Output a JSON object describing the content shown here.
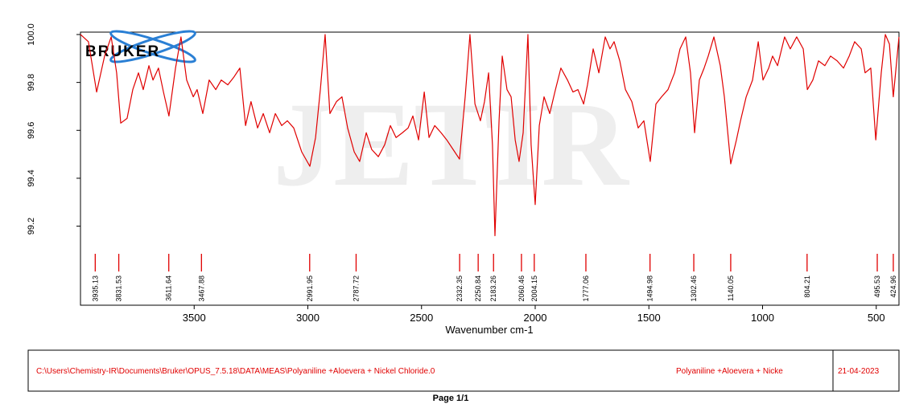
{
  "chart_data": {
    "type": "line",
    "logo": "BRUKER",
    "watermark": "JETIR",
    "xlabel": "Wavenumber cm-1",
    "color": "#e00000",
    "xlim": [
      4000,
      400
    ],
    "ylim": [
      98.87,
      100.01
    ],
    "xticks": [
      3500,
      3000,
      2500,
      2000,
      1500,
      1000,
      500
    ],
    "yticks": [
      {
        "value": 100,
        "label": "100.0"
      },
      99.8,
      99.6,
      99.4,
      99.2
    ],
    "x": [
      4000,
      3965,
      3929,
      3894,
      3865,
      3841,
      3823,
      3795,
      3770,
      3745,
      3724,
      3699,
      3681,
      3657,
      3635,
      3611,
      3582,
      3558,
      3533,
      3504,
      3487,
      3462,
      3434,
      3405,
      3381,
      3352,
      3327,
      3299,
      3274,
      3250,
      3221,
      3196,
      3168,
      3143,
      3115,
      3090,
      3062,
      3027,
      2991,
      2966,
      2945,
      2924,
      2903,
      2874,
      2850,
      2825,
      2796,
      2772,
      2743,
      2719,
      2690,
      2662,
      2637,
      2612,
      2584,
      2559,
      2538,
      2513,
      2488,
      2467,
      2442,
      2414,
      2389,
      2361,
      2333,
      2308,
      2287,
      2265,
      2241,
      2223,
      2205,
      2188,
      2177,
      2159,
      2145,
      2124,
      2106,
      2088,
      2071,
      2053,
      2032,
      2018,
      2000,
      1982,
      1961,
      1936,
      1911,
      1887,
      1858,
      1834,
      1812,
      1787,
      1770,
      1745,
      1720,
      1692,
      1671,
      1653,
      1628,
      1603,
      1575,
      1547,
      1522,
      1494,
      1469,
      1444,
      1416,
      1387,
      1363,
      1338,
      1317,
      1299,
      1278,
      1257,
      1239,
      1214,
      1186,
      1168,
      1140,
      1115,
      1097,
      1072,
      1044,
      1019,
      998,
      973,
      956,
      934,
      903,
      878,
      850,
      821,
      803,
      779,
      754,
      726,
      701,
      672,
      644,
      619,
      595,
      566,
      549,
      524,
      502,
      478,
      460,
      442,
      425,
      400
    ],
    "values": [
      100.0,
      99.97,
      99.76,
      99.91,
      99.99,
      99.84,
      99.63,
      99.65,
      99.77,
      99.84,
      99.77,
      99.87,
      99.81,
      99.86,
      99.76,
      99.66,
      99.86,
      99.99,
      99.81,
      99.74,
      99.77,
      99.67,
      99.81,
      99.77,
      99.81,
      99.79,
      99.82,
      99.86,
      99.62,
      99.72,
      99.61,
      99.67,
      99.59,
      99.67,
      99.62,
      99.64,
      99.61,
      99.51,
      99.45,
      99.57,
      99.77,
      100.0,
      99.67,
      99.72,
      99.74,
      99.61,
      99.51,
      99.47,
      99.59,
      99.52,
      99.49,
      99.54,
      99.62,
      99.57,
      99.59,
      99.61,
      99.66,
      99.56,
      99.76,
      99.57,
      99.62,
      99.59,
      99.56,
      99.52,
      99.48,
      99.74,
      100.0,
      99.71,
      99.64,
      99.72,
      99.84,
      99.54,
      99.16,
      99.64,
      99.91,
      99.77,
      99.74,
      99.56,
      99.47,
      99.59,
      100.0,
      99.54,
      99.29,
      99.62,
      99.74,
      99.67,
      99.77,
      99.86,
      99.81,
      99.76,
      99.77,
      99.71,
      99.79,
      99.94,
      99.84,
      99.99,
      99.94,
      99.97,
      99.89,
      99.77,
      99.72,
      99.61,
      99.64,
      99.47,
      99.71,
      99.74,
      99.77,
      99.84,
      99.94,
      99.99,
      99.84,
      99.59,
      99.81,
      99.86,
      99.91,
      99.99,
      99.87,
      99.74,
      99.46,
      99.56,
      99.64,
      99.74,
      99.81,
      99.97,
      99.81,
      99.86,
      99.91,
      99.87,
      99.99,
      99.94,
      99.99,
      99.94,
      99.77,
      99.81,
      99.89,
      99.87,
      99.91,
      99.89,
      99.86,
      99.91,
      99.97,
      99.94,
      99.84,
      99.86,
      99.56,
      99.84,
      100.0,
      99.96,
      99.74,
      99.99
    ],
    "peaks": [
      3935.13,
      3831.53,
      3611.64,
      3467.88,
      2991.95,
      2787.72,
      2332.35,
      2250.84,
      2183.26,
      2060.46,
      2004.15,
      1777.06,
      1494.98,
      1302.46,
      1140.05,
      804.21,
      495.53,
      424.96
    ],
    "footer": {
      "path": "C:\\Users\\Chemistry-IR\\Documents\\Bruker\\OPUS_7.5.18\\DATA\\MEAS\\Polyaniline +Aloevera + Nickel Chloride.0",
      "sample": "Polyaniline +Aloevera + Nicke",
      "date": "21-04-2023"
    },
    "page": "Page 1/1"
  }
}
